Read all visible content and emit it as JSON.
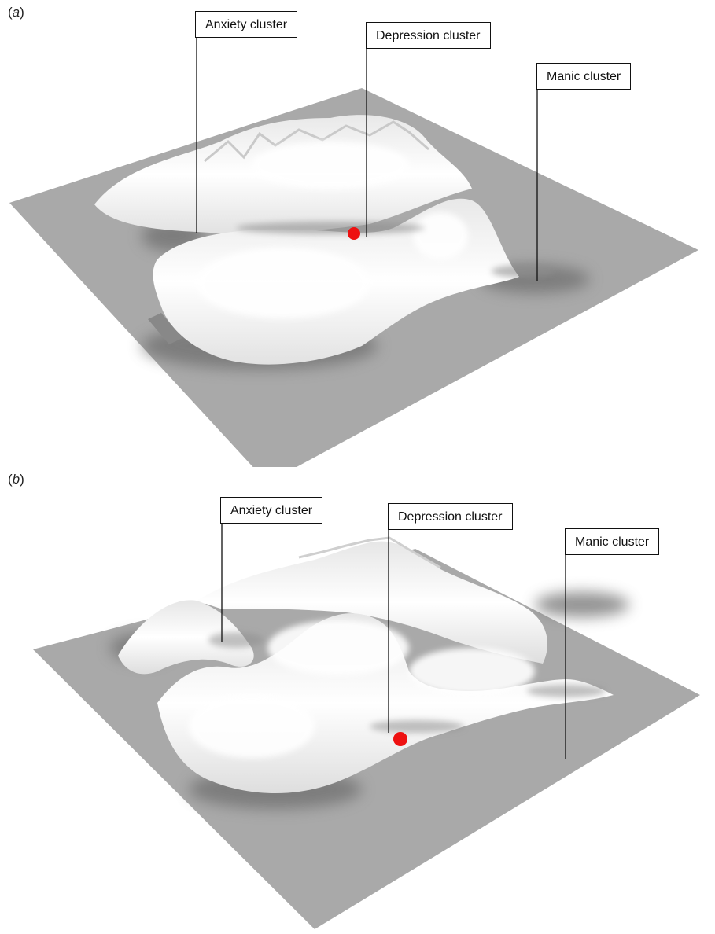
{
  "panels": [
    {
      "label_open": "(",
      "label_letter": "a",
      "label_close": ")",
      "clusters": [
        "Anxiety cluster",
        "Depression cluster",
        "Manic cluster"
      ],
      "marker_color": "#ee1111"
    },
    {
      "label_open": "(",
      "label_letter": "b",
      "label_close": ")",
      "clusters": [
        "Anxiety cluster",
        "Depression cluster",
        "Manic cluster"
      ],
      "marker_color": "#ee1111"
    }
  ],
  "colors": {
    "plane": "#a9a9a9",
    "ridge": "#f4f4f4",
    "marker": "#ee1111"
  }
}
